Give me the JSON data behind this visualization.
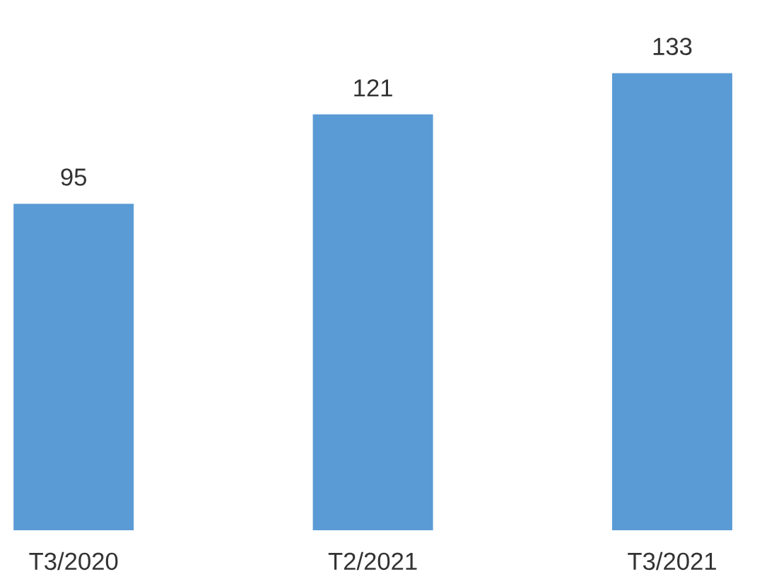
{
  "chart_data": {
    "type": "bar",
    "categories": [
      "T3/2020",
      "T2/2021",
      "T3/2021"
    ],
    "values": [
      95,
      121,
      133
    ],
    "color": "#5b9bd5",
    "data_labels": true
  }
}
